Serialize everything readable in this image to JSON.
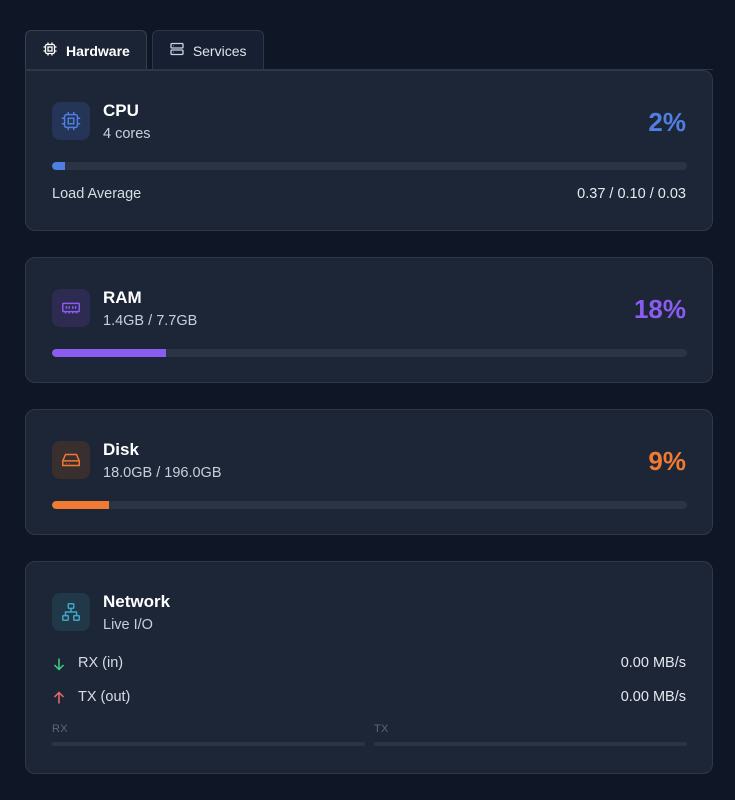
{
  "tabs": [
    {
      "label": "Hardware",
      "icon": "cpu-chip-icon",
      "active": true
    },
    {
      "label": "Services",
      "icon": "server-stack-icon",
      "active": false
    }
  ],
  "cpu": {
    "title": "CPU",
    "subtitle": "4 cores",
    "percent_label": "2%",
    "usage_fraction": 0.02,
    "color": "#4f7fe0",
    "load_label": "Load Average",
    "load_value": "0.37 / 0.10 / 0.03"
  },
  "ram": {
    "title": "RAM",
    "subtitle": "1.4GB / 7.7GB",
    "percent_label": "18%",
    "usage_fraction": 0.18,
    "color": "#8a5cf0"
  },
  "disk": {
    "title": "Disk",
    "subtitle": "18.0GB / 196.0GB",
    "percent_label": "9%",
    "usage_fraction": 0.09,
    "color": "#f07a32"
  },
  "network": {
    "title": "Network",
    "subtitle": "Live I/O",
    "color": "#3fa6c9",
    "rx_label": "RX (in)",
    "rx_value": "0.00 MB/s",
    "rx_color": "#3ecf85",
    "tx_label": "TX (out)",
    "tx_value": "0.00 MB/s",
    "tx_color": "#f06a6a",
    "spark_rx_label": "RX",
    "spark_tx_label": "TX"
  }
}
